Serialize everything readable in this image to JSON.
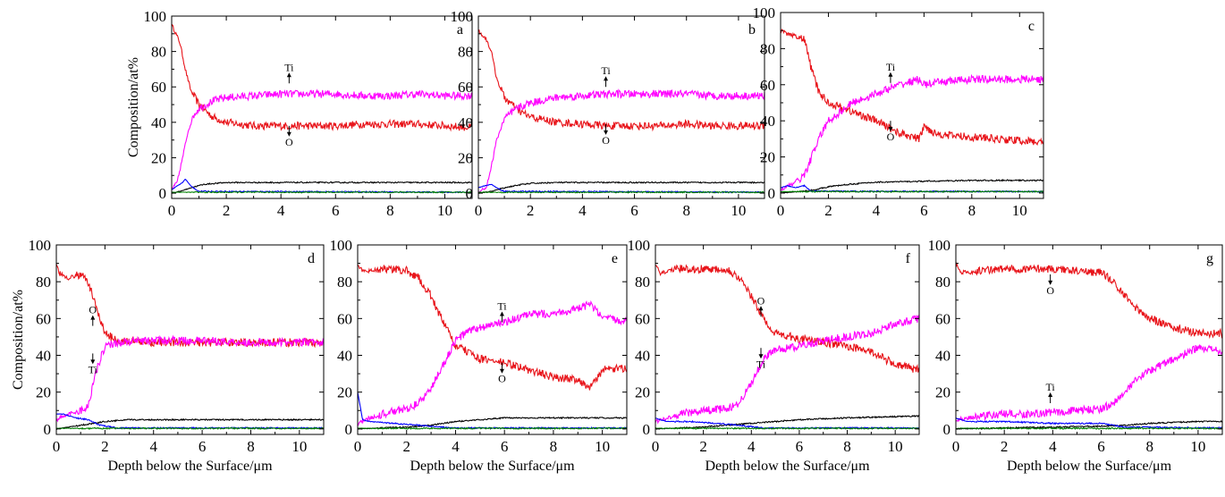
{
  "chart_data": [
    {
      "type": "line",
      "panel_label": "a",
      "ylabel": "Composition/at%",
      "xlabel": "",
      "xlim": [
        0,
        11
      ],
      "ylim": [
        -3,
        100
      ],
      "xticks": [
        0,
        2,
        4,
        6,
        8,
        10
      ],
      "yticks": [
        0,
        20,
        40,
        60,
        80,
        100
      ],
      "annotations": [
        {
          "text": "Ti"
        },
        {
          "text": "O"
        }
      ],
      "series": [
        {
          "color": "#e8141a",
          "x": [
            0,
            0.1,
            0.3,
            0.5,
            0.7,
            1.0,
            1.5,
            2,
            3,
            4,
            5,
            6,
            7,
            8,
            9,
            10,
            11
          ],
          "values": [
            95,
            92,
            85,
            70,
            58,
            50,
            43,
            40,
            38,
            38,
            38,
            38,
            39,
            39,
            39,
            38,
            37
          ]
        },
        {
          "color": "#ff00ff",
          "x": [
            0,
            0.2,
            0.4,
            0.6,
            0.8,
            1.0,
            1.5,
            2,
            3,
            4,
            5,
            6,
            7,
            8,
            9,
            10,
            11
          ],
          "values": [
            2,
            6,
            20,
            35,
            44,
            48,
            52,
            54,
            55,
            56,
            56,
            56,
            55,
            55,
            56,
            55,
            55
          ]
        },
        {
          "color": "#000000",
          "x": [
            0,
            0.3,
            0.5,
            0.8,
            1.2,
            2,
            4,
            6,
            8,
            10,
            11
          ],
          "values": [
            0,
            1,
            2,
            3.5,
            5,
            6,
            6,
            6,
            6,
            6,
            6
          ]
        },
        {
          "color": "#0000ff",
          "x": [
            0,
            0.2,
            0.4,
            0.5,
            0.7,
            1.0,
            11
          ],
          "values": [
            2,
            4,
            6,
            8,
            4,
            1,
            0.5
          ]
        },
        {
          "color": "#008000",
          "x": [
            0,
            11
          ],
          "values": [
            0.5,
            0.5
          ]
        }
      ]
    },
    {
      "type": "line",
      "panel_label": "b",
      "ylabel": "",
      "xlabel": "",
      "xlim": [
        0,
        11
      ],
      "ylim": [
        -3,
        100
      ],
      "xticks": [
        0,
        2,
        4,
        6,
        8,
        10
      ],
      "yticks": [
        0,
        20,
        40,
        60,
        80,
        100
      ],
      "annotations": [
        {
          "text": "Ti"
        },
        {
          "text": "O"
        }
      ],
      "series": [
        {
          "color": "#e8141a",
          "x": [
            0,
            0.1,
            0.3,
            0.5,
            0.7,
            1.0,
            1.5,
            2,
            3,
            4,
            5,
            6,
            7,
            8,
            9,
            10,
            11
          ],
          "values": [
            92,
            90,
            87,
            80,
            65,
            54,
            47,
            43,
            40,
            39,
            38,
            38,
            38,
            39,
            38,
            38,
            38
          ]
        },
        {
          "color": "#ff00ff",
          "x": [
            0,
            0.3,
            0.5,
            0.7,
            1.0,
            1.5,
            2,
            3,
            4,
            5,
            6,
            7,
            8,
            9,
            10,
            11
          ],
          "values": [
            1,
            3,
            15,
            30,
            42,
            48,
            51,
            54,
            55,
            56,
            56,
            56,
            56,
            55,
            55,
            55
          ]
        },
        {
          "color": "#000000",
          "x": [
            0,
            0.5,
            1.0,
            1.5,
            2,
            3,
            4,
            6,
            8,
            10,
            11
          ],
          "values": [
            0,
            1,
            3,
            4.5,
            5.5,
            6,
            6,
            6,
            6,
            6,
            6
          ]
        },
        {
          "color": "#0000ff",
          "x": [
            0,
            0.2,
            0.5,
            0.7,
            1.0,
            11
          ],
          "values": [
            3,
            4,
            5,
            3,
            1,
            0.5
          ]
        },
        {
          "color": "#008000",
          "x": [
            0,
            11
          ],
          "values": [
            0.5,
            0.5
          ]
        }
      ]
    },
    {
      "type": "line",
      "panel_label": "c",
      "ylabel": "",
      "xlabel": "",
      "xlim": [
        0,
        11
      ],
      "ylim": [
        -3,
        100
      ],
      "xticks": [
        0,
        2,
        4,
        6,
        8,
        10
      ],
      "yticks": [
        0,
        20,
        40,
        60,
        80,
        100
      ],
      "annotations": [
        {
          "text": "Ti"
        },
        {
          "text": "O"
        }
      ],
      "series": [
        {
          "color": "#e8141a",
          "x": [
            0,
            0.3,
            0.6,
            1.0,
            1.3,
            1.6,
            2,
            3,
            4,
            5,
            5.8,
            6,
            6.5,
            7,
            8,
            9,
            10,
            11
          ],
          "values": [
            90,
            88,
            87,
            85,
            68,
            56,
            50,
            45,
            40,
            33,
            30,
            37,
            33,
            32,
            31,
            30,
            29,
            28
          ]
        },
        {
          "color": "#ff00ff",
          "x": [
            0,
            0.5,
            1.0,
            1.3,
            1.6,
            2,
            2.5,
            3,
            4,
            5,
            5.8,
            6,
            7,
            8,
            9,
            10,
            11
          ],
          "values": [
            2,
            5,
            10,
            20,
            30,
            40,
            45,
            50,
            55,
            60,
            63,
            60,
            62,
            63,
            63,
            63,
            63
          ]
        },
        {
          "color": "#000000",
          "x": [
            0,
            1.0,
            1.5,
            2,
            3,
            4,
            6,
            8,
            10,
            11
          ],
          "values": [
            0,
            1,
            2,
            3.5,
            5,
            6,
            6.5,
            7,
            7,
            7
          ]
        },
        {
          "color": "#0000ff",
          "x": [
            0,
            0.3,
            0.6,
            1.0,
            1.3,
            11
          ],
          "values": [
            3,
            4,
            3,
            4,
            1,
            0.8
          ]
        },
        {
          "color": "#008000",
          "x": [
            0,
            11
          ],
          "values": [
            0.8,
            0.8
          ]
        }
      ]
    },
    {
      "type": "line",
      "panel_label": "d",
      "ylabel": "Composition/at%",
      "xlabel": "Depth below the Surface/μm",
      "xlim": [
        0,
        11
      ],
      "ylim": [
        -3,
        100
      ],
      "xticks": [
        0,
        2,
        4,
        6,
        8,
        10
      ],
      "yticks": [
        0,
        20,
        40,
        60,
        80,
        100
      ],
      "annotations": [
        {
          "text": "O"
        },
        {
          "text": "Ti"
        }
      ],
      "series": [
        {
          "color": "#e8141a",
          "x": [
            0,
            0.1,
            0.5,
            1.0,
            1.3,
            1.6,
            2.0,
            2.5,
            4,
            6,
            8,
            10,
            11
          ],
          "values": [
            90,
            85,
            82,
            84,
            80,
            68,
            52,
            48,
            47,
            47,
            47,
            47,
            47
          ]
        },
        {
          "color": "#ff00ff",
          "x": [
            0,
            0.5,
            1.0,
            1.3,
            1.6,
            2.0,
            2.5,
            4,
            6,
            8,
            10,
            11
          ],
          "values": [
            5,
            8,
            10,
            12,
            30,
            45,
            47,
            48,
            48,
            47,
            47,
            47
          ]
        },
        {
          "color": "#000000",
          "x": [
            0,
            0.5,
            1.0,
            1.5,
            2,
            3,
            5,
            8,
            11
          ],
          "values": [
            0,
            1,
            2,
            3,
            4,
            5,
            5,
            5,
            5
          ]
        },
        {
          "color": "#0000ff",
          "x": [
            0,
            0.3,
            0.8,
            1.3,
            1.8,
            2.5,
            11
          ],
          "values": [
            8,
            8,
            6,
            5,
            2,
            0.5,
            0.5
          ]
        },
        {
          "color": "#008000",
          "x": [
            0,
            11
          ],
          "values": [
            0.3,
            0.3
          ]
        }
      ]
    },
    {
      "type": "line",
      "panel_label": "e",
      "ylabel": "",
      "xlabel": "Depth below the Surface/μm",
      "xlim": [
        0,
        11
      ],
      "ylim": [
        -3,
        100
      ],
      "xticks": [
        0,
        2,
        4,
        6,
        8,
        10
      ],
      "yticks": [
        0,
        20,
        40,
        60,
        80,
        100
      ],
      "annotations": [
        {
          "text": "Ti"
        },
        {
          "text": "O"
        }
      ],
      "series": [
        {
          "color": "#e8141a",
          "x": [
            0,
            0.2,
            0.5,
            1.0,
            2.0,
            2.5,
            3.0,
            3.5,
            4.0,
            4.5,
            5,
            6,
            7,
            8,
            9,
            9.5,
            10,
            11
          ],
          "values": [
            89,
            86,
            86,
            87,
            86,
            82,
            72,
            58,
            45,
            42,
            38,
            36,
            32,
            28,
            27,
            22,
            32,
            33
          ]
        },
        {
          "color": "#ff00ff",
          "x": [
            0,
            0.5,
            1.0,
            2.0,
            2.5,
            3.0,
            3.5,
            4.0,
            4.5,
            5,
            6,
            7,
            8,
            9,
            9.5,
            10,
            11
          ],
          "values": [
            3,
            6,
            8,
            11,
            14,
            22,
            35,
            48,
            53,
            55,
            58,
            62,
            63,
            65,
            68,
            60,
            59
          ]
        },
        {
          "color": "#000000",
          "x": [
            0,
            1,
            2,
            3,
            4,
            5,
            6,
            8,
            11
          ],
          "values": [
            0,
            0.5,
            1,
            2,
            4,
            5,
            6,
            6,
            6
          ]
        },
        {
          "color": "#0000ff",
          "x": [
            0,
            0.2,
            0.5,
            1.5,
            2.5,
            3.5,
            4.0,
            11
          ],
          "values": [
            20,
            5,
            4,
            3,
            2,
            1,
            0.5,
            0.5
          ]
        },
        {
          "color": "#008000",
          "x": [
            0,
            11
          ],
          "values": [
            0.3,
            0.3
          ]
        }
      ]
    },
    {
      "type": "line",
      "panel_label": "f",
      "ylabel": "",
      "xlabel": "Depth below the Surface/μm",
      "xlim": [
        0,
        11
      ],
      "ylim": [
        -3,
        100
      ],
      "xticks": [
        0,
        2,
        4,
        6,
        8,
        10
      ],
      "yticks": [
        0,
        20,
        40,
        60,
        80,
        100
      ],
      "annotations": [
        {
          "text": "O"
        },
        {
          "text": "Ti"
        }
      ],
      "series": [
        {
          "color": "#e8141a",
          "x": [
            0,
            0.2,
            0.5,
            1.0,
            2.0,
            3.0,
            3.5,
            4.0,
            4.5,
            5.0,
            6,
            7,
            8,
            9,
            10,
            11
          ],
          "values": [
            90,
            84,
            86,
            87,
            87,
            87,
            82,
            72,
            60,
            52,
            49,
            47,
            45,
            42,
            35,
            32
          ]
        },
        {
          "color": "#ff00ff",
          "x": [
            0,
            0.5,
            1.0,
            2.0,
            3.0,
            3.5,
            4.0,
            4.5,
            5.0,
            6,
            7,
            8,
            9,
            10,
            11
          ],
          "values": [
            4,
            6,
            8,
            10,
            11,
            14,
            25,
            38,
            43,
            45,
            48,
            50,
            52,
            57,
            60
          ]
        },
        {
          "color": "#000000",
          "x": [
            0,
            1,
            2,
            3,
            4,
            5,
            6,
            8,
            11
          ],
          "values": [
            0,
            0.5,
            1,
            2,
            3,
            4,
            5,
            6,
            7
          ]
        },
        {
          "color": "#0000ff",
          "x": [
            0,
            0.2,
            0.5,
            1.5,
            2.5,
            3.5,
            4.5,
            11
          ],
          "values": [
            6,
            5,
            4,
            4,
            3,
            2,
            0.5,
            0.5
          ]
        },
        {
          "color": "#008000",
          "x": [
            0,
            11
          ],
          "values": [
            0.3,
            0.3
          ]
        }
      ]
    },
    {
      "type": "line",
      "panel_label": "g",
      "ylabel": "",
      "xlabel": "Depth below the Surface/μm",
      "xlim": [
        0,
        11
      ],
      "ylim": [
        -3,
        100
      ],
      "xticks": [
        0,
        2,
        4,
        6,
        8,
        10
      ],
      "yticks": [
        0,
        20,
        40,
        60,
        80,
        100
      ],
      "annotations": [
        {
          "text": "O"
        },
        {
          "text": "Ti"
        }
      ],
      "series": [
        {
          "color": "#e8141a",
          "x": [
            0,
            0.2,
            0.5,
            1,
            2,
            3,
            4,
            5,
            6,
            6.5,
            7,
            7.5,
            8,
            9,
            10,
            11
          ],
          "values": [
            90,
            85,
            85,
            86,
            87,
            87,
            87,
            86,
            85,
            80,
            72,
            65,
            60,
            55,
            52,
            52
          ]
        },
        {
          "color": "#ff00ff",
          "x": [
            0,
            0.5,
            1,
            2,
            3,
            4,
            5,
            6,
            6.5,
            7,
            7.5,
            8,
            9,
            10,
            11
          ],
          "values": [
            5,
            6,
            7,
            8,
            8,
            9,
            10,
            11,
            14,
            20,
            27,
            32,
            38,
            44,
            42
          ]
        },
        {
          "color": "#000000",
          "x": [
            0,
            2,
            4,
            6,
            7,
            8,
            9,
            10,
            11
          ],
          "values": [
            0,
            0.5,
            1,
            1.5,
            2,
            3,
            3.5,
            4,
            4
          ]
        },
        {
          "color": "#0000ff",
          "x": [
            0,
            0.2,
            0.5,
            2,
            4,
            6,
            7,
            11
          ],
          "values": [
            6,
            5,
            4,
            4,
            3,
            3,
            1,
            0.5
          ]
        },
        {
          "color": "#008000",
          "x": [
            0,
            11
          ],
          "values": [
            0.3,
            0.3
          ]
        }
      ]
    }
  ]
}
